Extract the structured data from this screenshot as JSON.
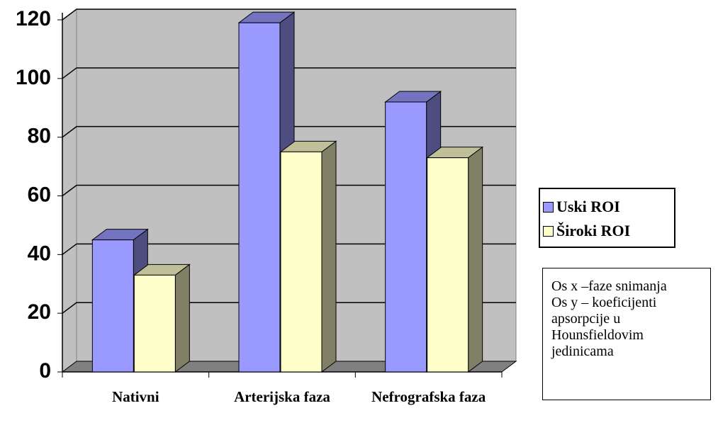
{
  "chart_data": {
    "type": "bar3d",
    "categories": [
      "Nativni",
      "Arterijska faza",
      "Nefrografska faza"
    ],
    "series": [
      {
        "name": "Uski ROI",
        "color": "#9999ff",
        "values": [
          45,
          119,
          92
        ]
      },
      {
        "name": "Široki ROI",
        "color": "#ffffcc",
        "values": [
          33,
          75,
          73
        ]
      }
    ],
    "ylim": [
      0,
      120
    ],
    "yticks": [
      0,
      20,
      40,
      60,
      80,
      100,
      120
    ],
    "grid": true,
    "annotations": [
      "Os x –faze snimanja",
      "Os y – koeficijenti apsorpcije u Hounsfieldovim jedinicama"
    ]
  }
}
